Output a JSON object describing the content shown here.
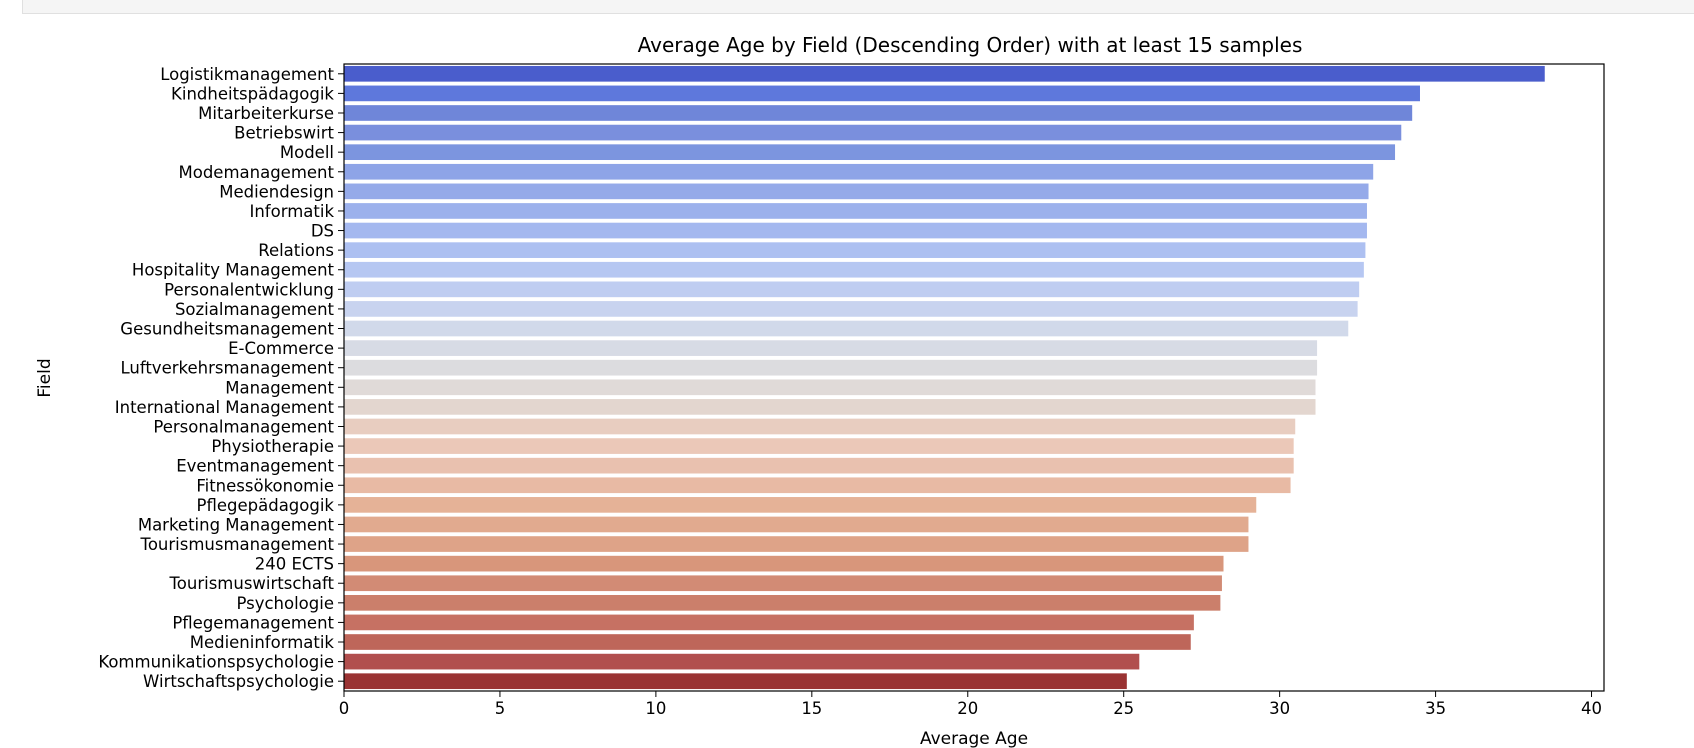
{
  "chart_data": {
    "type": "bar",
    "orientation": "horizontal",
    "title": "Average Age by Field (Descending Order) with at least 15 samples",
    "xlabel": "Average Age",
    "ylabel": "Field",
    "xlim": [
      0,
      40.4
    ],
    "xticks": [
      "0",
      "5",
      "10",
      "15",
      "20",
      "25",
      "30",
      "35",
      "40"
    ],
    "grid": false,
    "palette": "coolwarm",
    "categories": [
      "Logistikmanagement",
      "Kindheitspädagogik",
      "Mitarbeiterkurse",
      "Betriebswirt",
      "Modell",
      "Modemanagement",
      "Mediendesign",
      "Informatik",
      "DS",
      "Relations",
      "Hospitality Management",
      "Personalentwicklung",
      "Sozialmanagement",
      "Gesundheitsmanagement",
      "E-Commerce",
      "Luftverkehrsmanagement",
      "Management",
      "International Management",
      "Personalmanagement",
      "Physiotherapie",
      "Eventmanagement",
      "Fitnessökonomie",
      "Pflegepädagogik",
      "Marketing Management",
      "Tourismusmanagement",
      "240 ECTS",
      "Tourismuswirtschaft",
      "Psychologie",
      "Pflegemanagement",
      "Medieninformatik",
      "Kommunikationspsychologie",
      "Wirtschaftspsychologie"
    ],
    "values": [
      38.5,
      34.5,
      34.25,
      33.9,
      33.7,
      33.0,
      32.85,
      32.8,
      32.8,
      32.75,
      32.7,
      32.55,
      32.5,
      32.2,
      31.2,
      31.2,
      31.15,
      31.15,
      30.5,
      30.45,
      30.45,
      30.35,
      29.25,
      29.0,
      29.0,
      28.2,
      28.15,
      28.1,
      27.25,
      27.15,
      25.5,
      25.1
    ],
    "colors": [
      "#4a5dcc",
      "#5e78dc",
      "#6f86d9",
      "#7a8fdd",
      "#7c95df",
      "#8ea4e7",
      "#95aae9",
      "#9cb1ec",
      "#a4b8ef",
      "#adc0f1",
      "#b6c7f2",
      "#bfcdf1",
      "#c8d3ef",
      "#d1d9ea",
      "#d7dbe5",
      "#dcdcdf",
      "#e0dad8",
      "#e3d6cf",
      "#e8cdc0",
      "#ebc8b8",
      "#e9c1af",
      "#e8baa4",
      "#e5b297",
      "#e1aa8f",
      "#dea388",
      "#d8967b",
      "#d28b75",
      "#cb7f6b",
      "#c67163",
      "#be665a",
      "#b14f4e",
      "#9a3333"
    ]
  }
}
